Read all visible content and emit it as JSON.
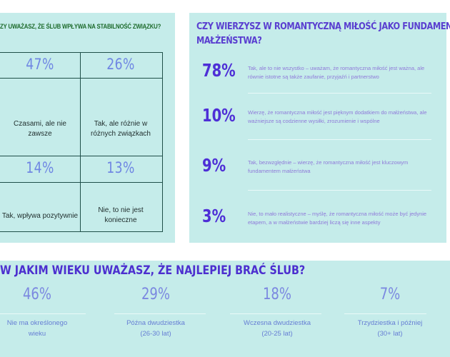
{
  "stability": {
    "title": "ZY UWAŻASZ, ŻE ŚLUB WPŁYWA NA STABILNOŚĆ ZWIĄZKU?",
    "cells": [
      {
        "pct": "47%",
        "label": "Czasami, ale nie zawsze"
      },
      {
        "pct": "26%",
        "label": "Tak, ale różnie w różnych związkach"
      },
      {
        "pct": "14%",
        "label": "Tak, wpływa pozytywnie"
      },
      {
        "pct": "13%",
        "label": "Nie, to nie jest konieczne"
      }
    ]
  },
  "romance": {
    "title_line1": "CZY WIERZYSZ W ROMANTYCZNĄ MIŁOŚĆ JAKO FUNDAMENT",
    "title_line2": "MAŁŻEŃSTWA?",
    "rows": [
      {
        "pct": "78%",
        "text": "Tak, ale to nie wszystko – uważam, że romantyczna miłość jest ważna, ale równie istotne są także zaufanie, przyjaźń i partnerstwo"
      },
      {
        "pct": "10%",
        "text": "Wierzę, że romantyczna miłość jest pięknym dodatkiem do małżeństwa, ale ważniejsze są codzienne wysiłki, zrozumienie i wspólne"
      },
      {
        "pct": "9%",
        "text": "Tak, bezwzględnie – wierzę, że romantyczna miłość jest kluczowym fundamentem małżeństwa"
      },
      {
        "pct": "3%",
        "text": "Nie, to mało realistyczne – myślę, że romantyczna miłość może być jedynie etapem, a w małżeństwie bardziej liczą się inne aspekty"
      }
    ]
  },
  "age": {
    "title": "W JAKIM WIEKU UWAŻASZ, ŻE NAJLEPIEJ BRAĆ ŚLUB?",
    "items": [
      {
        "pct": "46%",
        "line1": "Nie ma określonego",
        "line2": "wieku"
      },
      {
        "pct": "29%",
        "line1": "Późna dwudziestka",
        "line2": "(26-30 lat)"
      },
      {
        "pct": "18%",
        "line1": "Wczesna dwudziestka",
        "line2": "(20-25 lat)"
      },
      {
        "pct": "7%",
        "line1": "Trzydziestka i później",
        "line2": "(30+ lat)"
      }
    ]
  },
  "colors": {
    "panel_bg": "#c5ecea",
    "green_title": "#1d6b2c",
    "purple_title": "#4c2fcf",
    "light_blue_pct": "#6f86e3",
    "row_text": "#8f7ad9"
  }
}
